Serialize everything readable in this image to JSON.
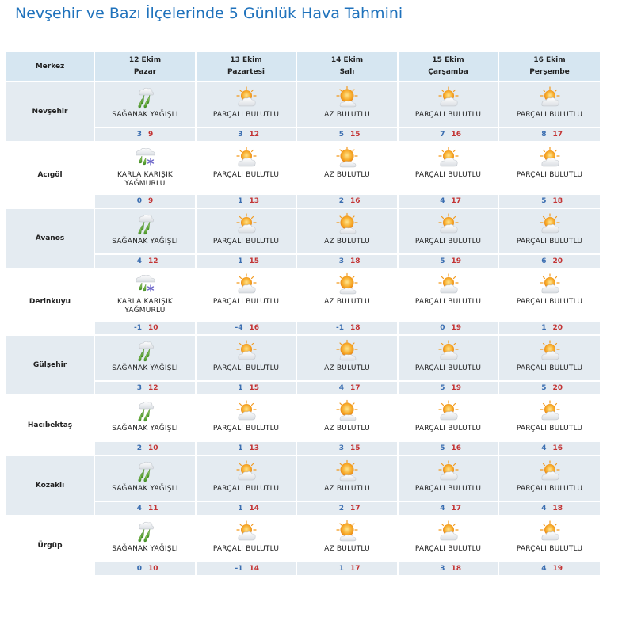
{
  "page": {
    "title": "Nevşehir ve Bazı İlçelerinde 5 Günlük Hava Tahmini"
  },
  "header": {
    "corner_label": "Merkez",
    "days": [
      {
        "date": "12 Ekim",
        "weekday": "Pazar"
      },
      {
        "date": "13 Ekim",
        "weekday": "Pazartesi"
      },
      {
        "date": "14 Ekim",
        "weekday": "Salı"
      },
      {
        "date": "15 Ekim",
        "weekday": "Çarşamba"
      },
      {
        "date": "16 Ekim",
        "weekday": "Perşembe"
      }
    ]
  },
  "colors": {
    "title": "#1f72bc",
    "header_bg": "#d6e6f1",
    "row_shade": "#e4ebf1",
    "low_temp": "#3a6db0",
    "high_temp": "#c33434"
  },
  "rows": [
    {
      "city": "Nevşehir",
      "days": [
        {
          "icon": "rain-showers-icon",
          "desc": "SAĞANAK YAĞIŞLI",
          "lo": "3",
          "hi": "9"
        },
        {
          "icon": "partly-cloudy-icon",
          "desc": "PARÇALI BULUTLU",
          "lo": "3",
          "hi": "12"
        },
        {
          "icon": "mostly-sunny-icon",
          "desc": "AZ BULUTLU",
          "lo": "5",
          "hi": "15"
        },
        {
          "icon": "partly-cloudy-icon",
          "desc": "PARÇALI BULUTLU",
          "lo": "7",
          "hi": "16"
        },
        {
          "icon": "partly-cloudy-icon",
          "desc": "PARÇALI BULUTLU",
          "lo": "8",
          "hi": "17"
        }
      ]
    },
    {
      "city": "Acıgöl",
      "days": [
        {
          "icon": "sleet-icon",
          "desc": "KARLA KARIŞIK YAĞMURLU",
          "lo": "0",
          "hi": "9"
        },
        {
          "icon": "partly-cloudy-icon",
          "desc": "PARÇALI BULUTLU",
          "lo": "1",
          "hi": "13"
        },
        {
          "icon": "mostly-sunny-icon",
          "desc": "AZ BULUTLU",
          "lo": "2",
          "hi": "16"
        },
        {
          "icon": "partly-cloudy-icon",
          "desc": "PARÇALI BULUTLU",
          "lo": "4",
          "hi": "17"
        },
        {
          "icon": "partly-cloudy-icon",
          "desc": "PARÇALI BULUTLU",
          "lo": "5",
          "hi": "18"
        }
      ]
    },
    {
      "city": "Avanos",
      "days": [
        {
          "icon": "rain-showers-icon",
          "desc": "SAĞANAK YAĞIŞLI",
          "lo": "4",
          "hi": "12"
        },
        {
          "icon": "partly-cloudy-icon",
          "desc": "PARÇALI BULUTLU",
          "lo": "1",
          "hi": "15"
        },
        {
          "icon": "mostly-sunny-icon",
          "desc": "AZ BULUTLU",
          "lo": "3",
          "hi": "18"
        },
        {
          "icon": "partly-cloudy-icon",
          "desc": "PARÇALI BULUTLU",
          "lo": "5",
          "hi": "19"
        },
        {
          "icon": "partly-cloudy-icon",
          "desc": "PARÇALI BULUTLU",
          "lo": "6",
          "hi": "20"
        }
      ]
    },
    {
      "city": "Derinkuyu",
      "days": [
        {
          "icon": "sleet-icon",
          "desc": "KARLA KARIŞIK YAĞMURLU",
          "lo": "-1",
          "hi": "10"
        },
        {
          "icon": "partly-cloudy-icon",
          "desc": "PARÇALI BULUTLU",
          "lo": "-4",
          "hi": "16"
        },
        {
          "icon": "mostly-sunny-icon",
          "desc": "AZ BULUTLU",
          "lo": "-1",
          "hi": "18"
        },
        {
          "icon": "partly-cloudy-icon",
          "desc": "PARÇALI BULUTLU",
          "lo": "0",
          "hi": "19"
        },
        {
          "icon": "partly-cloudy-icon",
          "desc": "PARÇALI BULUTLU",
          "lo": "1",
          "hi": "20"
        }
      ]
    },
    {
      "city": "Gülşehir",
      "days": [
        {
          "icon": "rain-showers-icon",
          "desc": "SAĞANAK YAĞIŞLI",
          "lo": "3",
          "hi": "12"
        },
        {
          "icon": "partly-cloudy-icon",
          "desc": "PARÇALI BULUTLU",
          "lo": "1",
          "hi": "15"
        },
        {
          "icon": "mostly-sunny-icon",
          "desc": "AZ BULUTLU",
          "lo": "4",
          "hi": "17"
        },
        {
          "icon": "partly-cloudy-icon",
          "desc": "PARÇALI BULUTLU",
          "lo": "5",
          "hi": "19"
        },
        {
          "icon": "partly-cloudy-icon",
          "desc": "PARÇALI BULUTLU",
          "lo": "5",
          "hi": "20"
        }
      ]
    },
    {
      "city": "Hacıbektaş",
      "days": [
        {
          "icon": "rain-showers-icon",
          "desc": "SAĞANAK YAĞIŞLI",
          "lo": "2",
          "hi": "10"
        },
        {
          "icon": "partly-cloudy-icon",
          "desc": "PARÇALI BULUTLU",
          "lo": "1",
          "hi": "13"
        },
        {
          "icon": "mostly-sunny-icon",
          "desc": "AZ BULUTLU",
          "lo": "3",
          "hi": "15"
        },
        {
          "icon": "partly-cloudy-icon",
          "desc": "PARÇALI BULUTLU",
          "lo": "5",
          "hi": "16"
        },
        {
          "icon": "partly-cloudy-icon",
          "desc": "PARÇALI BULUTLU",
          "lo": "4",
          "hi": "16"
        }
      ]
    },
    {
      "city": "Kozaklı",
      "days": [
        {
          "icon": "rain-showers-icon",
          "desc": "SAĞANAK YAĞIŞLI",
          "lo": "4",
          "hi": "11"
        },
        {
          "icon": "partly-cloudy-icon",
          "desc": "PARÇALI BULUTLU",
          "lo": "1",
          "hi": "14"
        },
        {
          "icon": "mostly-sunny-icon",
          "desc": "AZ BULUTLU",
          "lo": "2",
          "hi": "17"
        },
        {
          "icon": "partly-cloudy-icon",
          "desc": "PARÇALI BULUTLU",
          "lo": "4",
          "hi": "17"
        },
        {
          "icon": "partly-cloudy-icon",
          "desc": "PARÇALI BULUTLU",
          "lo": "4",
          "hi": "18"
        }
      ]
    },
    {
      "city": "Ürgüp",
      "days": [
        {
          "icon": "rain-showers-icon",
          "desc": "SAĞANAK YAĞIŞLI",
          "lo": "0",
          "hi": "10"
        },
        {
          "icon": "partly-cloudy-icon",
          "desc": "PARÇALI BULUTLU",
          "lo": "-1",
          "hi": "14"
        },
        {
          "icon": "mostly-sunny-icon",
          "desc": "AZ BULUTLU",
          "lo": "1",
          "hi": "17"
        },
        {
          "icon": "partly-cloudy-icon",
          "desc": "PARÇALI BULUTLU",
          "lo": "3",
          "hi": "18"
        },
        {
          "icon": "partly-cloudy-icon",
          "desc": "PARÇALI BULUTLU",
          "lo": "4",
          "hi": "19"
        }
      ]
    }
  ]
}
